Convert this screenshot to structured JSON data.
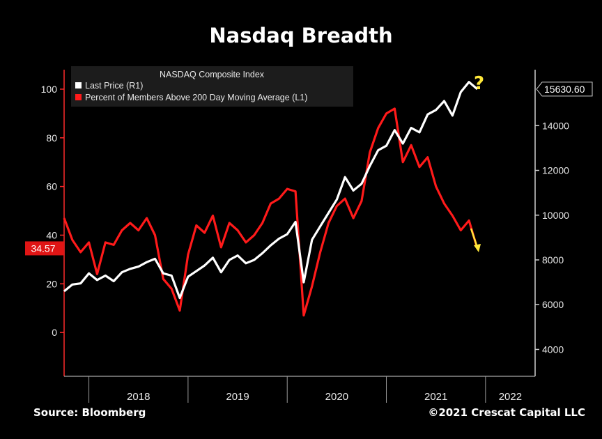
{
  "chart_data": {
    "type": "line",
    "title": "Nasdaq Breadth",
    "legend": {
      "title": "NASDAQ Composite Index",
      "placement": "top-left",
      "entries": [
        {
          "label": "Last Price  (R1)",
          "color": "#ffffff"
        },
        {
          "label": "Percent of Members Above 200 Day Moving Average  (L1)",
          "color": "#ff1a1a"
        }
      ]
    },
    "x_axis": {
      "labels": [
        "2018",
        "2019",
        "2020",
        "2021",
        "2022"
      ],
      "range": [
        "2017-10",
        "2022-07"
      ]
    },
    "y_left": {
      "ticks": [
        "100",
        "80",
        "60",
        "40",
        "20",
        "0"
      ],
      "range": [
        -18,
        108
      ]
    },
    "y_right": {
      "ticks": [
        "14000",
        "12000",
        "10000",
        "8000",
        "6000",
        "4000"
      ],
      "range": [
        2800,
        16500
      ]
    },
    "last_value_labels": {
      "left": "34.57",
      "right": "15630.60"
    },
    "annotations": {
      "question_mark": "?",
      "arrow": "down-arrow"
    },
    "series": [
      {
        "name": "Last Price  (R1)",
        "axis": "right",
        "color": "#ffffff",
        "points": [
          [
            "2017-10",
            6600
          ],
          [
            "2017-11",
            6900
          ],
          [
            "2017-12",
            6950
          ],
          [
            "2018-01",
            7400
          ],
          [
            "2018-02",
            7100
          ],
          [
            "2018-03",
            7300
          ],
          [
            "2018-04",
            7050
          ],
          [
            "2018-05",
            7450
          ],
          [
            "2018-06",
            7600
          ],
          [
            "2018-07",
            7700
          ],
          [
            "2018-08",
            7900
          ],
          [
            "2018-09",
            8050
          ],
          [
            "2018-10",
            7400
          ],
          [
            "2018-11",
            7300
          ],
          [
            "2018-12",
            6300
          ],
          [
            "2019-01",
            7250
          ],
          [
            "2019-02",
            7500
          ],
          [
            "2019-03",
            7750
          ],
          [
            "2019-04",
            8100
          ],
          [
            "2019-05",
            7450
          ],
          [
            "2019-06",
            8000
          ],
          [
            "2019-07",
            8200
          ],
          [
            "2019-08",
            7850
          ],
          [
            "2019-09",
            8000
          ],
          [
            "2019-10",
            8300
          ],
          [
            "2019-11",
            8650
          ],
          [
            "2019-12",
            8950
          ],
          [
            "2020-01",
            9150
          ],
          [
            "2020-02",
            9700
          ],
          [
            "2020-03",
            7000
          ],
          [
            "2020-04",
            8900
          ],
          [
            "2020-05",
            9500
          ],
          [
            "2020-06",
            10100
          ],
          [
            "2020-07",
            10700
          ],
          [
            "2020-08",
            11700
          ],
          [
            "2020-09",
            11100
          ],
          [
            "2020-10",
            11400
          ],
          [
            "2020-11",
            12200
          ],
          [
            "2020-12",
            12900
          ],
          [
            "2021-01",
            13100
          ],
          [
            "2021-02",
            13800
          ],
          [
            "2021-03",
            13200
          ],
          [
            "2021-04",
            13900
          ],
          [
            "2021-05",
            13700
          ],
          [
            "2021-06",
            14500
          ],
          [
            "2021-07",
            14700
          ],
          [
            "2021-08",
            15100
          ],
          [
            "2021-09",
            14450
          ],
          [
            "2021-10",
            15500
          ],
          [
            "2021-11",
            15950
          ],
          [
            "2021-12",
            15630.6
          ]
        ]
      },
      {
        "name": "Percent of Members Above 200 Day Moving Average  (L1)",
        "axis": "left",
        "color": "#ff1a1a",
        "points": [
          [
            "2017-10",
            47
          ],
          [
            "2017-11",
            38
          ],
          [
            "2017-12",
            33
          ],
          [
            "2018-01",
            37
          ],
          [
            "2018-02",
            24
          ],
          [
            "2018-03",
            37
          ],
          [
            "2018-04",
            36
          ],
          [
            "2018-05",
            42
          ],
          [
            "2018-06",
            45
          ],
          [
            "2018-07",
            42
          ],
          [
            "2018-08",
            47
          ],
          [
            "2018-09",
            40
          ],
          [
            "2018-10",
            22
          ],
          [
            "2018-11",
            18
          ],
          [
            "2018-12",
            9
          ],
          [
            "2019-01",
            32
          ],
          [
            "2019-02",
            44
          ],
          [
            "2019-03",
            41
          ],
          [
            "2019-04",
            48
          ],
          [
            "2019-05",
            35
          ],
          [
            "2019-06",
            45
          ],
          [
            "2019-07",
            42
          ],
          [
            "2019-08",
            37
          ],
          [
            "2019-09",
            40
          ],
          [
            "2019-10",
            45
          ],
          [
            "2019-11",
            53
          ],
          [
            "2019-12",
            55
          ],
          [
            "2020-01",
            59
          ],
          [
            "2020-02",
            58
          ],
          [
            "2020-03",
            7
          ],
          [
            "2020-04",
            19
          ],
          [
            "2020-05",
            33
          ],
          [
            "2020-06",
            45
          ],
          [
            "2020-07",
            52
          ],
          [
            "2020-08",
            55
          ],
          [
            "2020-09",
            47
          ],
          [
            "2020-10",
            54
          ],
          [
            "2020-11",
            74
          ],
          [
            "2020-12",
            84
          ],
          [
            "2021-01",
            90
          ],
          [
            "2021-02",
            92
          ],
          [
            "2021-03",
            70
          ],
          [
            "2021-04",
            77
          ],
          [
            "2021-05",
            68
          ],
          [
            "2021-06",
            72
          ],
          [
            "2021-07",
            60
          ],
          [
            "2021-08",
            53
          ],
          [
            "2021-09",
            48
          ],
          [
            "2021-10",
            42
          ],
          [
            "2021-11",
            46
          ],
          [
            "2021-12",
            34.57
          ]
        ]
      }
    ]
  },
  "footer": {
    "source": "Source: Bloomberg",
    "copyright": "©2021 Crescat Capital LLC"
  }
}
